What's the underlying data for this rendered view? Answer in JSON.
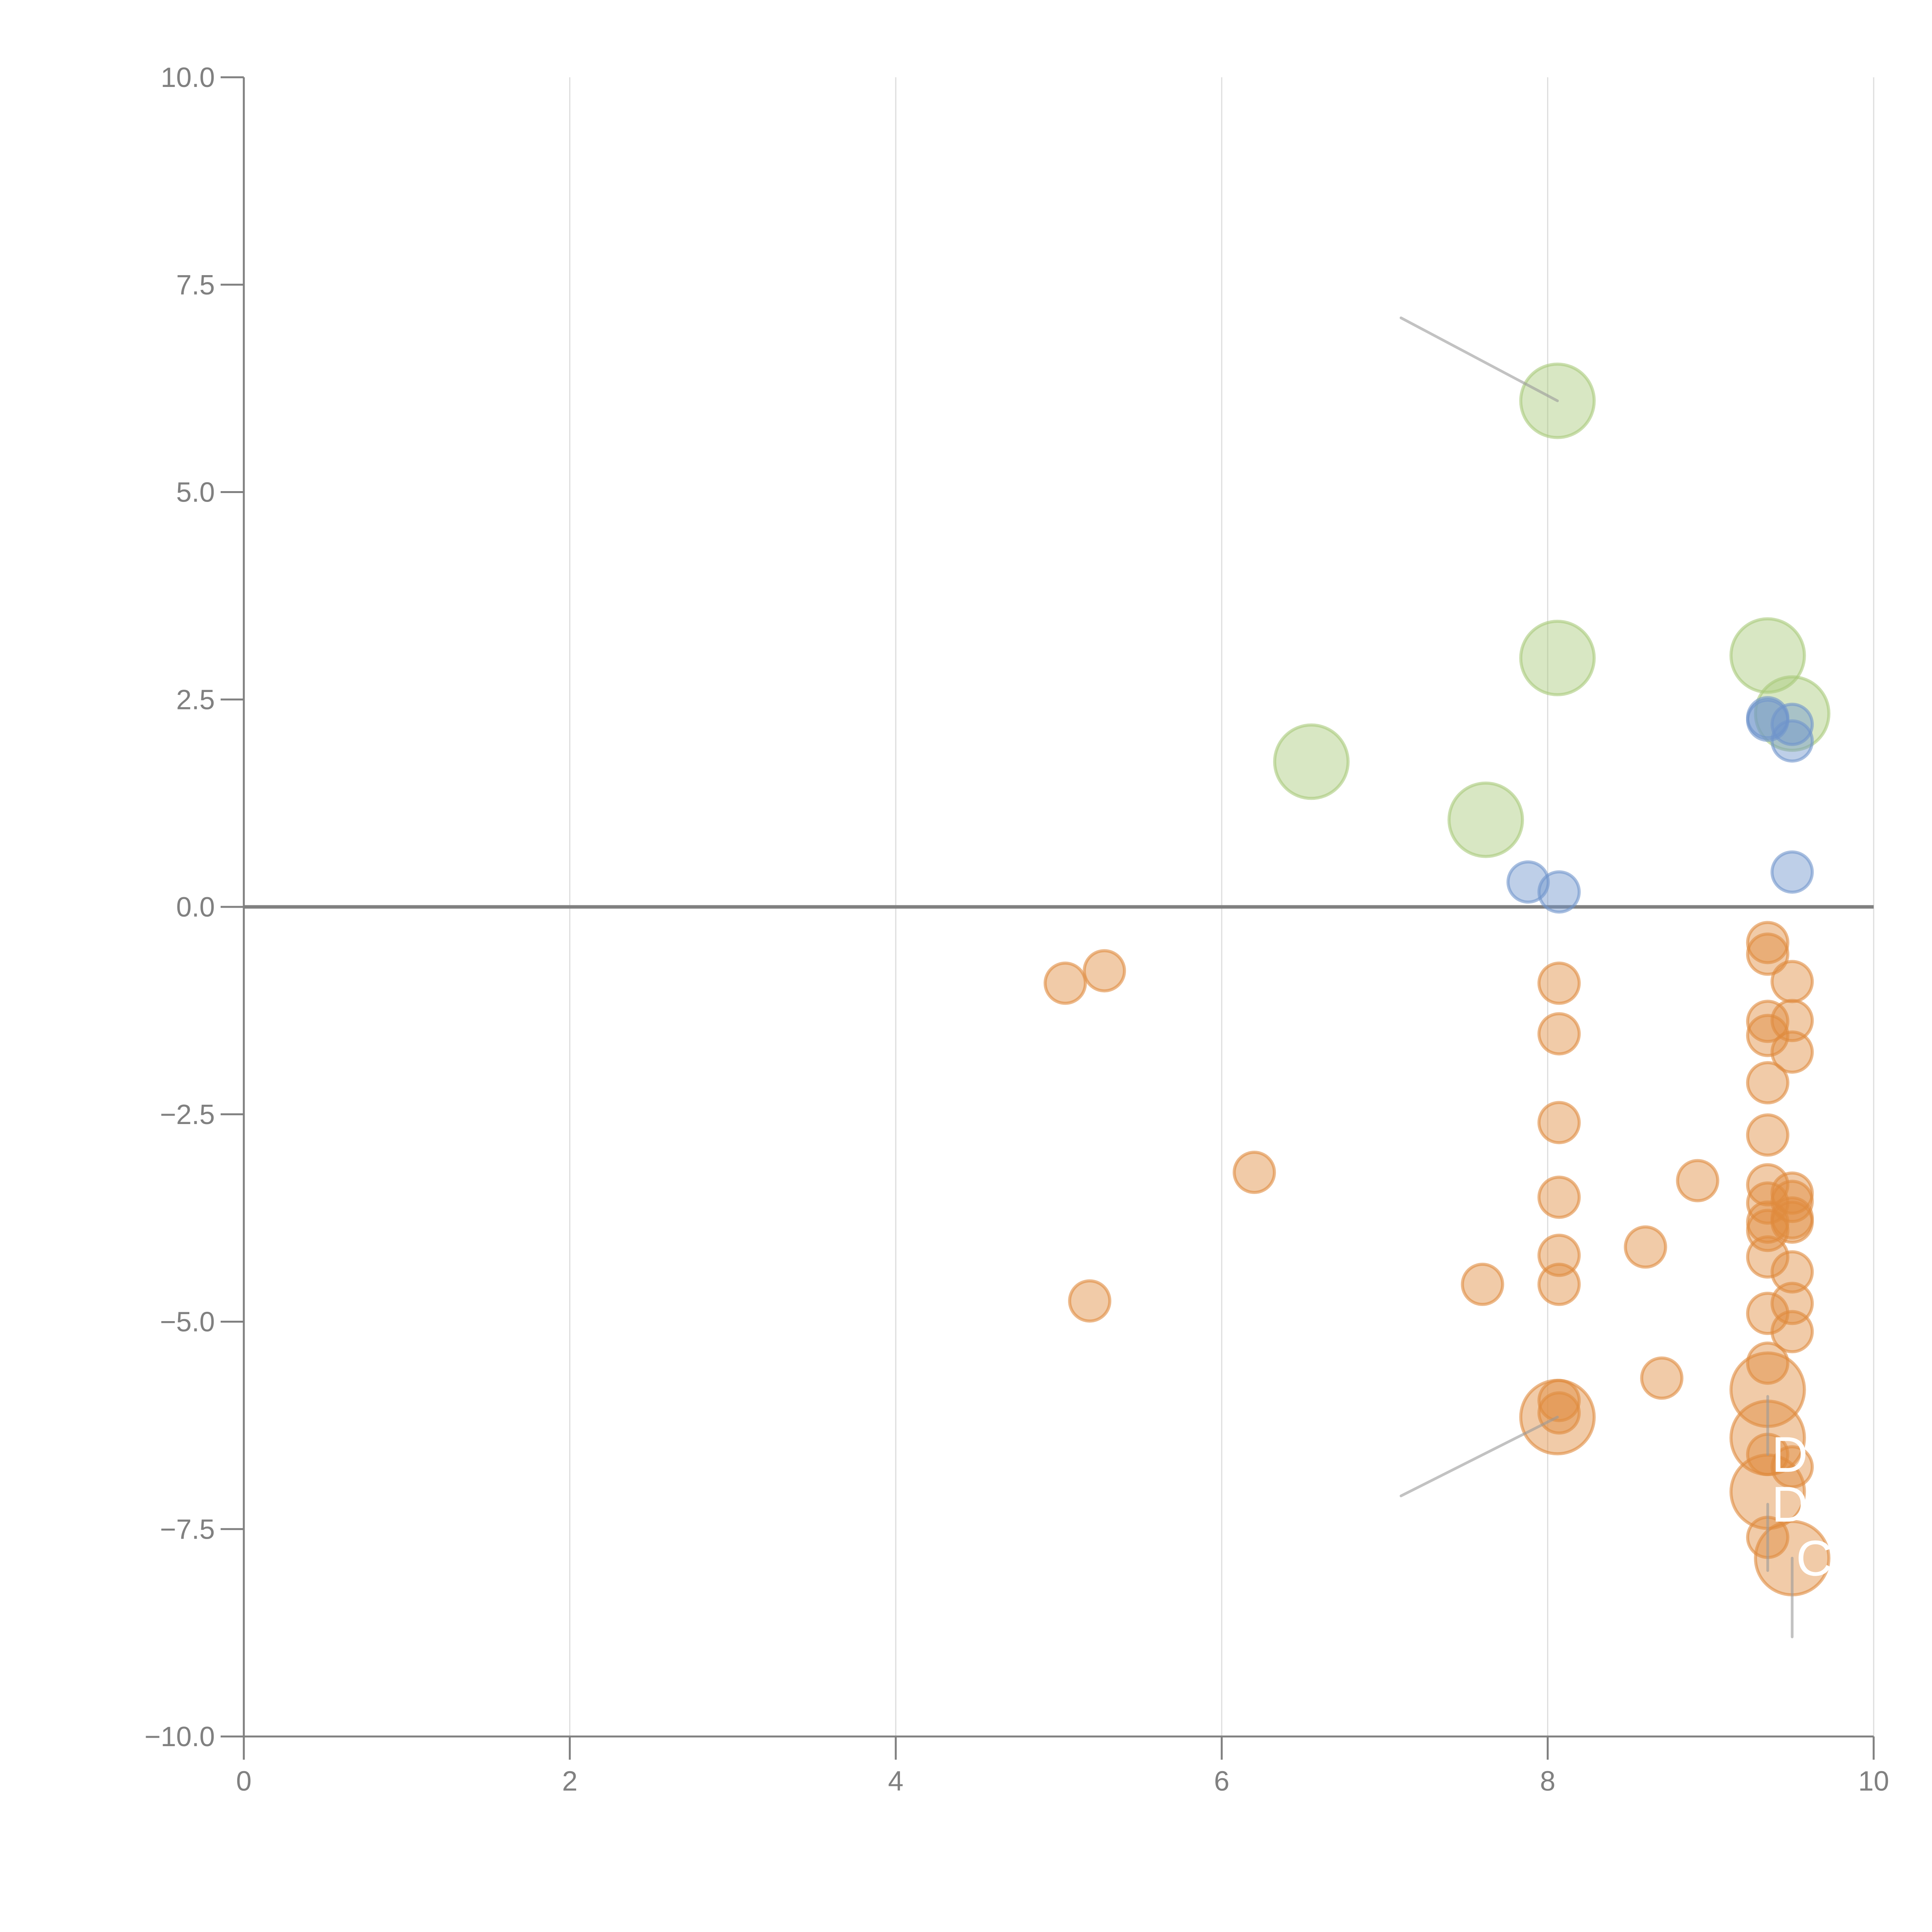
{
  "chart_data": {
    "type": "scatter",
    "title": "",
    "xlabel": "",
    "ylabel": "",
    "xlim": [
      0,
      10
    ],
    "ylim": [
      -10,
      10
    ],
    "x_ticks": [
      "0",
      "2",
      "4",
      "6",
      "8",
      "10"
    ],
    "y_ticks": [
      "10.0",
      "7.5",
      "5.0",
      "2.5",
      "0.0",
      "−2.5",
      "−5.0",
      "−7.5",
      "−10.0"
    ],
    "y_tick_values": [
      10,
      7.5,
      5,
      2.5,
      0,
      -2.5,
      -5,
      -7.5,
      -10
    ],
    "x_tick_values": [
      0,
      2,
      4,
      6,
      8,
      10
    ],
    "grid": "vertical",
    "reference_line_y": 0,
    "colors": {
      "green": "#a9c97a",
      "blue": "#6f94cc",
      "orange": "#e08b3e",
      "axis": "#808080",
      "grid": "#dddddd"
    },
    "series": [
      {
        "name": "green",
        "size": "large",
        "points": [
          {
            "x": 8.06,
            "y": 6.1
          },
          {
            "x": 8.06,
            "y": 3.0
          },
          {
            "x": 9.35,
            "y": 3.03
          },
          {
            "x": 9.5,
            "y": 2.33
          },
          {
            "x": 6.55,
            "y": 1.75
          },
          {
            "x": 7.62,
            "y": 1.05
          }
        ]
      },
      {
        "name": "blue",
        "size": "small",
        "points": [
          {
            "x": 9.35,
            "y": 2.28
          },
          {
            "x": 9.35,
            "y": 2.25
          },
          {
            "x": 9.5,
            "y": 2.2
          },
          {
            "x": 9.5,
            "y": 2.0
          },
          {
            "x": 7.88,
            "y": 0.3
          },
          {
            "x": 8.07,
            "y": 0.18
          },
          {
            "x": 9.5,
            "y": 0.42
          }
        ]
      },
      {
        "name": "orange",
        "size": "small",
        "points": [
          {
            "x": 5.04,
            "y": -0.92
          },
          {
            "x": 5.28,
            "y": -0.77
          },
          {
            "x": 6.2,
            "y": -3.2
          },
          {
            "x": 5.19,
            "y": -4.75
          },
          {
            "x": 7.6,
            "y": -4.55
          },
          {
            "x": 8.6,
            "y": -4.1
          },
          {
            "x": 8.92,
            "y": -3.3
          },
          {
            "x": 8.7,
            "y": -5.68
          },
          {
            "x": 8.07,
            "y": -0.92
          },
          {
            "x": 8.07,
            "y": -1.53
          },
          {
            "x": 8.07,
            "y": -2.6
          },
          {
            "x": 8.07,
            "y": -3.5
          },
          {
            "x": 8.07,
            "y": -4.2
          },
          {
            "x": 8.07,
            "y": -4.55
          },
          {
            "x": 8.07,
            "y": -5.95
          },
          {
            "x": 8.07,
            "y": -6.1
          },
          {
            "x": 9.35,
            "y": -0.43
          },
          {
            "x": 9.35,
            "y": -0.57
          },
          {
            "x": 9.35,
            "y": -1.38
          },
          {
            "x": 9.35,
            "y": -1.55
          },
          {
            "x": 9.35,
            "y": -2.12
          },
          {
            "x": 9.35,
            "y": -2.75
          },
          {
            "x": 9.35,
            "y": -3.35
          },
          {
            "x": 9.35,
            "y": -3.57
          },
          {
            "x": 9.35,
            "y": -3.8
          },
          {
            "x": 9.35,
            "y": -3.9
          },
          {
            "x": 9.35,
            "y": -4.22
          },
          {
            "x": 9.35,
            "y": -4.9
          },
          {
            "x": 9.35,
            "y": -5.5
          },
          {
            "x": 9.35,
            "y": -6.6
          },
          {
            "x": 9.35,
            "y": -7.6
          },
          {
            "x": 9.5,
            "y": -0.9
          },
          {
            "x": 9.5,
            "y": -1.37
          },
          {
            "x": 9.5,
            "y": -1.75
          },
          {
            "x": 9.5,
            "y": -3.45
          },
          {
            "x": 9.5,
            "y": -3.55
          },
          {
            "x": 9.5,
            "y": -3.75
          },
          {
            "x": 9.5,
            "y": -3.8
          },
          {
            "x": 9.5,
            "y": -4.4
          },
          {
            "x": 9.5,
            "y": -4.78
          },
          {
            "x": 9.5,
            "y": -5.12
          },
          {
            "x": 9.5,
            "y": -6.75
          }
        ]
      },
      {
        "name": "orange-large",
        "size": "large",
        "points": [
          {
            "x": 8.06,
            "y": -6.15
          },
          {
            "x": 9.35,
            "y": -5.82
          },
          {
            "x": 9.35,
            "y": -6.4
          },
          {
            "x": 9.35,
            "y": -7.05
          },
          {
            "x": 9.5,
            "y": -7.85
          }
        ]
      }
    ],
    "annotations": [
      {
        "text": "",
        "x": 8.06,
        "y": 6.1,
        "line_to": {
          "x": 7.1,
          "y": 7.1
        }
      },
      {
        "text": "",
        "x": 8.06,
        "y": -6.15,
        "line_to": {
          "x": 7.1,
          "y": -7.1
        }
      },
      {
        "text": "D",
        "x": 9.35,
        "y": -6.6,
        "line_to": {
          "x": 9.35,
          "y": -5.9
        }
      },
      {
        "text": "D",
        "x": 9.35,
        "y": -7.2,
        "line_to": {
          "x": 9.35,
          "y": -8.0
        }
      },
      {
        "text": "CE",
        "x": 9.5,
        "y": -7.85,
        "line_to": {
          "x": 9.5,
          "y": -8.8
        }
      }
    ]
  }
}
